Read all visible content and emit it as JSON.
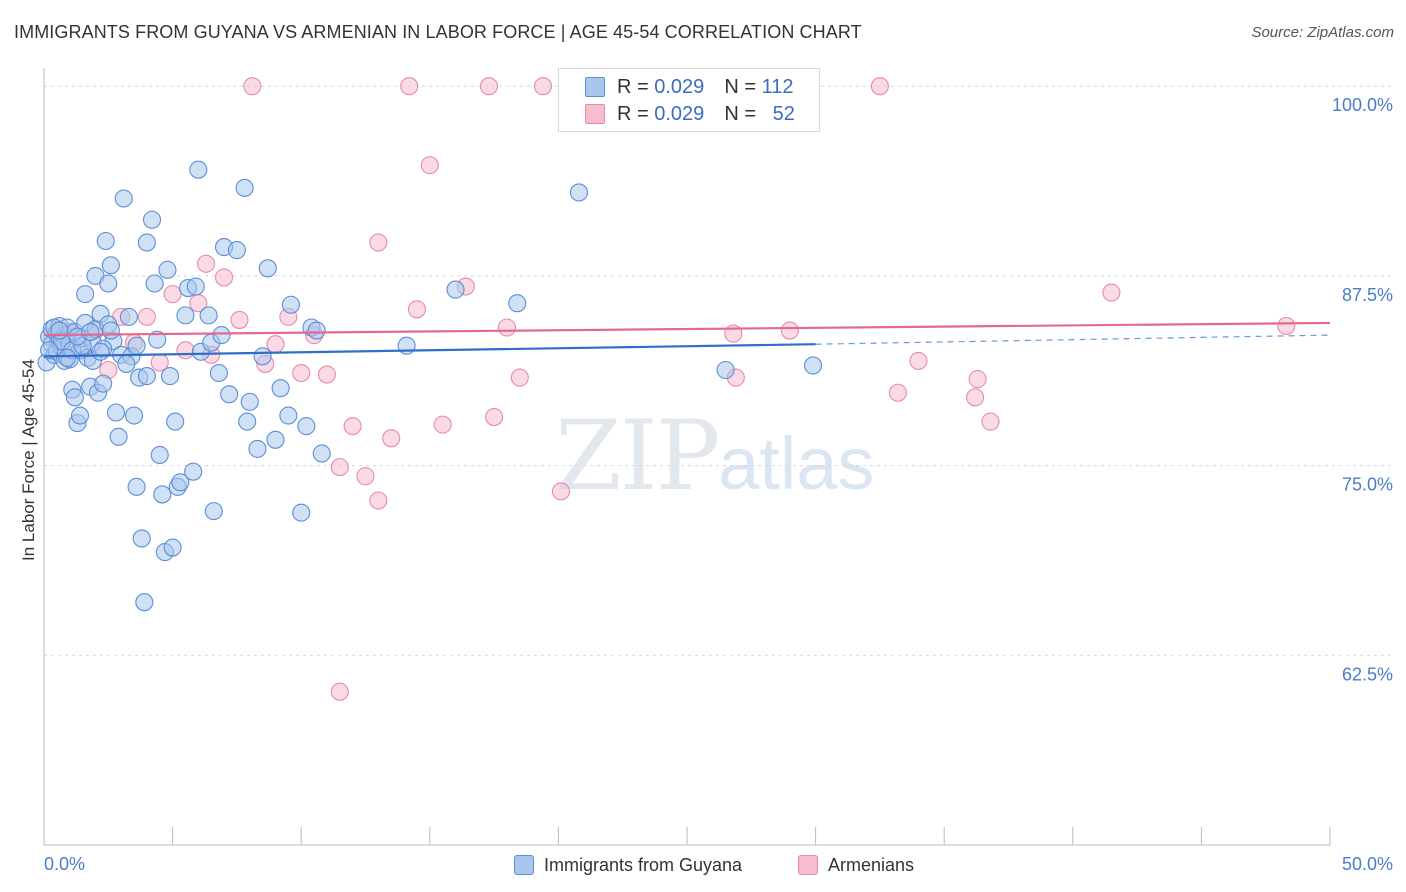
{
  "title": "IMMIGRANTS FROM GUYANA VS ARMENIAN IN LABOR FORCE | AGE 45-54 CORRELATION CHART",
  "source": "Source: ZipAtlas.com",
  "watermark": {
    "zip": "ZIP",
    "atlas": "atlas"
  },
  "legend": {
    "r_label": "R =",
    "n_label": "N =",
    "series": [
      {
        "r": "0.029",
        "n": "112"
      },
      {
        "r": "0.029",
        "n": "52"
      }
    ]
  },
  "bottom_legend": [
    {
      "label": "Immigrants from Guyana"
    },
    {
      "label": "Armenians"
    }
  ],
  "colors": {
    "blue_fill": "#a9c6ec",
    "blue_stroke": "#5b8fd6",
    "blue_line": "#2f6fcb",
    "pink_fill": "#f6bcd0",
    "pink_stroke": "#e88aa9",
    "pink_line": "#e3698f",
    "grid": "#d0d7e0",
    "axis": "#bbbbbb",
    "tick_text": "#4a7cc8"
  },
  "chart_data": {
    "type": "scatter",
    "title": "IMMIGRANTS FROM GUYANA VS ARMENIAN IN LABOR FORCE | AGE 45-54 CORRELATION CHART",
    "xlabel": "",
    "ylabel": "In Labor Force | Age 45-54",
    "xlim": [
      0,
      50
    ],
    "ylim": [
      50,
      101.2
    ],
    "x_ticks": [
      {
        "value": 0,
        "label": "0.0%"
      },
      {
        "value": 50,
        "label": "50.0%"
      }
    ],
    "y_ticks": [
      {
        "value": 100,
        "label": "100.0%"
      },
      {
        "value": 87.5,
        "label": "87.5%"
      },
      {
        "value": 75,
        "label": "75.0%"
      },
      {
        "value": 62.5,
        "label": "62.5%"
      }
    ],
    "series": [
      {
        "name": "Immigrants from Guyana",
        "trend": {
          "x": [
            0,
            30
          ],
          "y": [
            82.2,
            83.0
          ],
          "dash_x": [
            30,
            50
          ],
          "dash_y": [
            83.0,
            83.6
          ]
        },
        "points": [
          [
            0.1,
            81.8
          ],
          [
            0.2,
            83.5
          ],
          [
            0.3,
            83.0
          ],
          [
            0.3,
            84.0
          ],
          [
            0.4,
            82.3
          ],
          [
            0.5,
            83.7
          ],
          [
            0.5,
            82.5
          ],
          [
            0.6,
            83.2
          ],
          [
            0.6,
            84.2
          ],
          [
            0.7,
            82.8
          ],
          [
            0.8,
            83.6
          ],
          [
            0.8,
            81.9
          ],
          [
            0.9,
            84.1
          ],
          [
            1.0,
            83.0
          ],
          [
            1.0,
            82.0
          ],
          [
            1.1,
            80.0
          ],
          [
            1.2,
            79.5
          ],
          [
            1.2,
            83.8
          ],
          [
            1.3,
            77.8
          ],
          [
            1.4,
            82.6
          ],
          [
            1.4,
            78.3
          ],
          [
            1.5,
            83.4
          ],
          [
            1.6,
            86.3
          ],
          [
            1.6,
            84.4
          ],
          [
            1.7,
            82.1
          ],
          [
            1.8,
            80.2
          ],
          [
            1.9,
            83.1
          ],
          [
            2.0,
            84.0
          ],
          [
            2.0,
            87.5
          ],
          [
            2.1,
            79.8
          ],
          [
            2.2,
            85.0
          ],
          [
            2.3,
            80.4
          ],
          [
            2.4,
            89.8
          ],
          [
            2.5,
            84.3
          ],
          [
            2.5,
            87.0
          ],
          [
            2.6,
            88.2
          ],
          [
            2.7,
            83.2
          ],
          [
            2.8,
            78.5
          ],
          [
            2.9,
            76.9
          ],
          [
            3.0,
            82.3
          ],
          [
            3.1,
            92.6
          ],
          [
            3.3,
            84.8
          ],
          [
            3.4,
            82.2
          ],
          [
            3.5,
            78.3
          ],
          [
            3.6,
            73.6
          ],
          [
            3.7,
            80.8
          ],
          [
            3.8,
            70.2
          ],
          [
            3.9,
            66.0
          ],
          [
            4.0,
            80.9
          ],
          [
            4.0,
            89.7
          ],
          [
            4.2,
            91.2
          ],
          [
            4.3,
            87.0
          ],
          [
            4.4,
            83.3
          ],
          [
            4.5,
            75.7
          ],
          [
            4.6,
            73.1
          ],
          [
            4.7,
            69.3
          ],
          [
            4.8,
            87.9
          ],
          [
            4.9,
            80.9
          ],
          [
            5.0,
            69.6
          ],
          [
            5.1,
            77.9
          ],
          [
            5.2,
            73.6
          ],
          [
            5.3,
            73.9
          ],
          [
            5.5,
            84.9
          ],
          [
            5.6,
            86.7
          ],
          [
            5.8,
            74.6
          ],
          [
            5.9,
            86.8
          ],
          [
            6.0,
            94.5
          ],
          [
            6.1,
            82.5
          ],
          [
            6.4,
            84.9
          ],
          [
            6.5,
            83.1
          ],
          [
            6.6,
            72.0
          ],
          [
            6.8,
            81.1
          ],
          [
            6.9,
            83.6
          ],
          [
            7.0,
            89.4
          ],
          [
            7.2,
            79.7
          ],
          [
            7.5,
            89.2
          ],
          [
            7.8,
            93.3
          ],
          [
            7.9,
            77.9
          ],
          [
            8.0,
            79.2
          ],
          [
            8.3,
            76.1
          ],
          [
            8.5,
            82.2
          ],
          [
            8.7,
            88.0
          ],
          [
            9.0,
            76.7
          ],
          [
            9.2,
            80.1
          ],
          [
            9.5,
            78.3
          ],
          [
            9.6,
            85.6
          ],
          [
            10.0,
            71.9
          ],
          [
            10.2,
            77.6
          ],
          [
            10.4,
            84.1
          ],
          [
            10.6,
            83.9
          ],
          [
            10.8,
            75.8
          ],
          [
            14.1,
            82.9
          ],
          [
            16.0,
            86.6
          ],
          [
            18.4,
            85.7
          ],
          [
            20.8,
            93.0
          ],
          [
            26.5,
            81.3
          ],
          [
            29.9,
            81.6
          ],
          [
            0.4,
            84.1
          ],
          [
            0.7,
            83.2
          ],
          [
            1.1,
            82.6
          ],
          [
            1.5,
            82.9
          ],
          [
            1.9,
            81.9
          ],
          [
            2.3,
            82.7
          ],
          [
            2.6,
            83.9
          ],
          [
            3.2,
            81.7
          ],
          [
            3.6,
            82.9
          ],
          [
            0.2,
            82.6
          ],
          [
            0.9,
            82.1
          ],
          [
            1.3,
            83.5
          ],
          [
            1.8,
            83.8
          ],
          [
            2.2,
            82.5
          ],
          [
            0.6,
            83.9
          ]
        ]
      },
      {
        "name": "Armenians",
        "trend": {
          "x": [
            0,
            50
          ],
          "y": [
            83.6,
            84.4
          ]
        },
        "points": [
          [
            0.5,
            83.0
          ],
          [
            1.0,
            83.8
          ],
          [
            1.5,
            82.6
          ],
          [
            2.0,
            83.9
          ],
          [
            2.5,
            81.3
          ],
          [
            3.0,
            84.8
          ],
          [
            3.5,
            83.1
          ],
          [
            4.0,
            84.8
          ],
          [
            4.5,
            81.8
          ],
          [
            5.0,
            86.3
          ],
          [
            5.5,
            82.6
          ],
          [
            6.0,
            85.7
          ],
          [
            6.3,
            88.3
          ],
          [
            6.5,
            82.3
          ],
          [
            7.0,
            87.4
          ],
          [
            7.6,
            84.6
          ],
          [
            8.1,
            100.0
          ],
          [
            8.6,
            81.7
          ],
          [
            9.0,
            83.0
          ],
          [
            9.5,
            84.8
          ],
          [
            10.0,
            81.1
          ],
          [
            10.5,
            83.6
          ],
          [
            11.0,
            81.0
          ],
          [
            11.5,
            74.9
          ],
          [
            12.0,
            77.6
          ],
          [
            12.5,
            74.3
          ],
          [
            13.0,
            89.7
          ],
          [
            13.5,
            76.8
          ],
          [
            14.2,
            100.0
          ],
          [
            14.5,
            85.3
          ],
          [
            15.0,
            94.8
          ],
          [
            15.5,
            77.7
          ],
          [
            16.4,
            86.8
          ],
          [
            17.3,
            100.0
          ],
          [
            18.0,
            84.1
          ],
          [
            18.5,
            80.8
          ],
          [
            19.4,
            100.0
          ],
          [
            20.1,
            73.3
          ],
          [
            26.8,
            83.7
          ],
          [
            26.9,
            80.8
          ],
          [
            29.0,
            83.9
          ],
          [
            32.5,
            100.0
          ],
          [
            33.2,
            79.8
          ],
          [
            34.0,
            81.9
          ],
          [
            36.2,
            79.5
          ],
          [
            36.3,
            80.7
          ],
          [
            36.8,
            77.9
          ],
          [
            41.5,
            86.4
          ],
          [
            48.3,
            84.2
          ],
          [
            11.5,
            60.1
          ],
          [
            17.5,
            78.2
          ],
          [
            13.0,
            72.7
          ]
        ]
      }
    ]
  }
}
